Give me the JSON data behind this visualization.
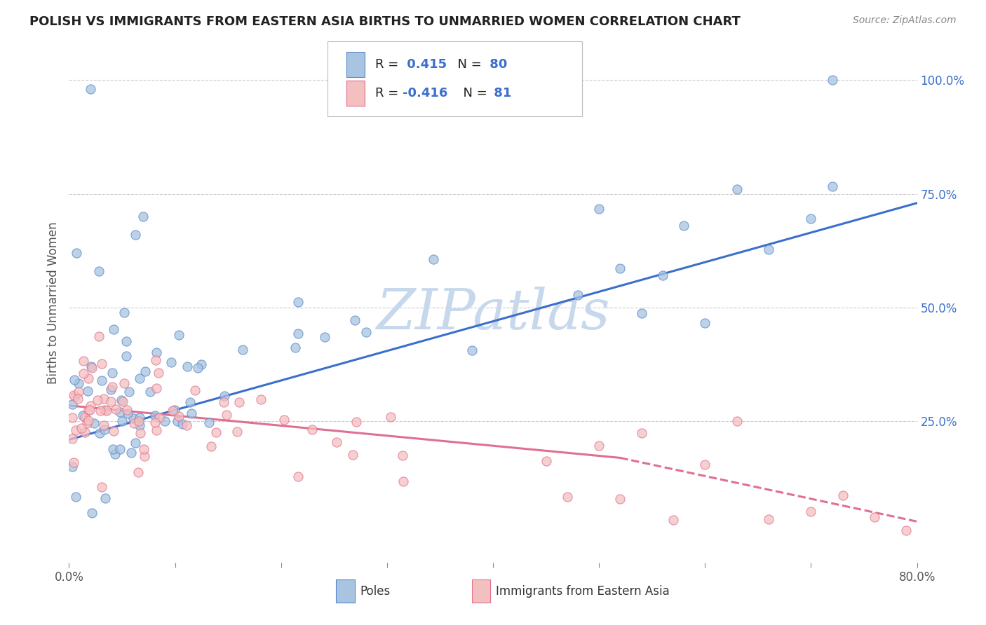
{
  "title": "POLISH VS IMMIGRANTS FROM EASTERN ASIA BIRTHS TO UNMARRIED WOMEN CORRELATION CHART",
  "source": "Source: ZipAtlas.com",
  "ylabel": "Births to Unmarried Women",
  "ytick_labels": [
    "25.0%",
    "50.0%",
    "75.0%",
    "100.0%"
  ],
  "ytick_values": [
    0.25,
    0.5,
    0.75,
    1.0
  ],
  "xmin": 0.0,
  "xmax": 0.8,
  "ymin": -0.06,
  "ymax": 1.08,
  "blue_R": "0.415",
  "blue_N": "80",
  "pink_R": "-0.416",
  "pink_N": "81",
  "legend_label_blue": "Poles",
  "legend_label_pink": "Immigrants from Eastern Asia",
  "blue_fill_color": "#A8C4E0",
  "pink_fill_color": "#F4BFBF",
  "blue_edge_color": "#5588CC",
  "pink_edge_color": "#E07090",
  "blue_line_color": "#3B6FCC",
  "pink_line_color": "#E07090",
  "text_color_blue": "#3B6FCC",
  "text_color_dark": "#333333",
  "watermark_color": "#C8D8EC",
  "blue_trendline": [
    0.0,
    0.8,
    0.21,
    0.73
  ],
  "pink_trendline_solid": [
    0.0,
    0.52,
    0.285,
    0.17
  ],
  "pink_trendline_dash": [
    0.52,
    0.8,
    0.17,
    0.03
  ]
}
